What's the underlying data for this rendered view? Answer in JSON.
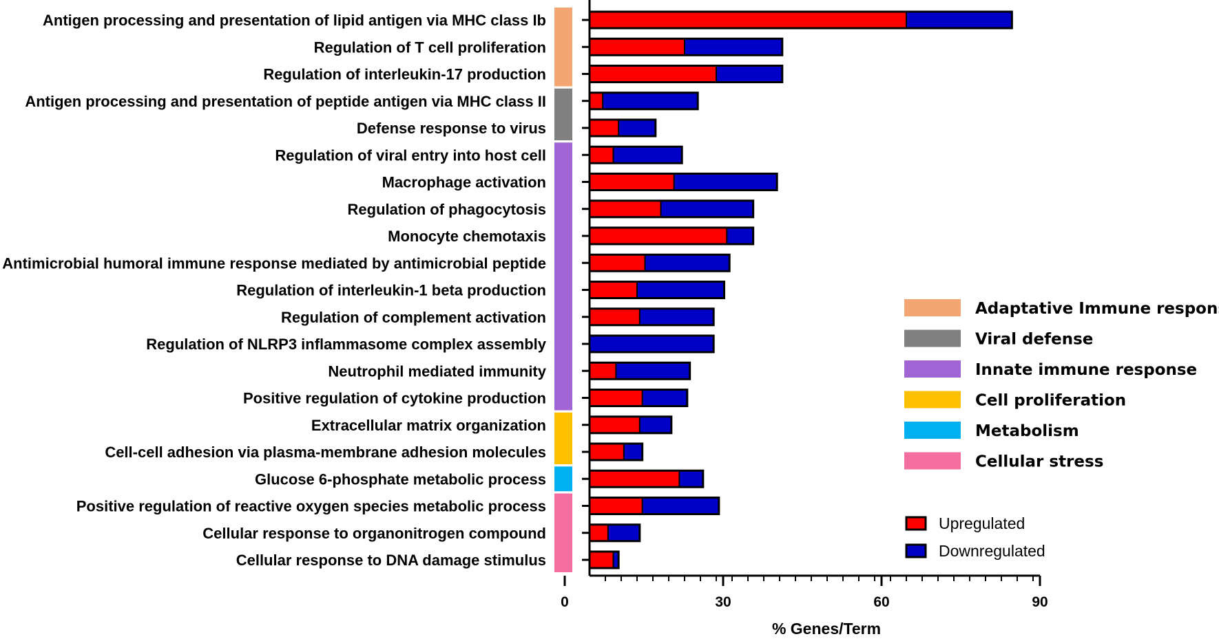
{
  "chart_data": {
    "type": "bar",
    "orientation": "horizontal",
    "stacked": true,
    "xlabel": "% Genes/Term",
    "xlim": [
      0,
      90
    ],
    "xticks": [
      0,
      30,
      60,
      90
    ],
    "categories": [
      "Antigen processing and presentation of lipid antigen via MHC class Ib",
      "Regulation of T cell proliferation",
      "Regulation of interleukin-17 production",
      "Antigen processing and presentation of peptide antigen via MHC class II",
      "Defense response to virus",
      "Regulation of viral entry into host cell",
      "Macrophage activation",
      "Regulation of phagocytosis",
      "Monocyte chemotaxis",
      "Antimicrobial humoral immune response mediated by antimicrobial peptide",
      "Regulation of interleukin-1 beta production",
      "Regulation of complement activation",
      "Regulation of NLRP3 inflammasome complex assembly",
      "Neutrophil mediated immunity",
      "Positive regulation of cytokine production",
      "Extracellular matrix organization",
      "Cell-cell adhesion via plasma-membrane adhesion molecules",
      "Glucose 6-phosphate metabolic process",
      "Positive regulation of reactive oxygen species metabolic process",
      "Cellular response to organonitrogen compound",
      "Cellular response to DNA damage stimulus"
    ],
    "series": [
      {
        "name": "Upregulated",
        "color": "#ff0000",
        "values": [
          60.0,
          18.0,
          24.0,
          2.5,
          5.5,
          4.5,
          16.0,
          13.5,
          26.0,
          10.5,
          9.0,
          9.5,
          0,
          5.0,
          10.0,
          9.5,
          6.5,
          17.0,
          10.0,
          3.5,
          4.5
        ]
      },
      {
        "name": "Downregulated",
        "color": "#0000c8",
        "values": [
          20.0,
          18.5,
          12.5,
          18.0,
          7.0,
          13.0,
          19.5,
          17.5,
          5.0,
          16.0,
          16.5,
          14.0,
          23.5,
          14.0,
          8.5,
          6.0,
          3.5,
          4.5,
          14.5,
          6.0,
          1.0
        ]
      }
    ],
    "groups": [
      {
        "name": "Adaptative Immune response",
        "color": "#f4a672",
        "start": 0,
        "end": 2
      },
      {
        "name": "Viral defense",
        "color": "#808080",
        "start": 3,
        "end": 4
      },
      {
        "name": "Innate immune response",
        "color": "#a064d4",
        "start": 5,
        "end": 14
      },
      {
        "name": "Cell proliferation",
        "color": "#ffc000",
        "start": 15,
        "end": 16
      },
      {
        "name": "Metabolism",
        "color": "#00b0f0",
        "start": 17,
        "end": 17
      },
      {
        "name": "Cellular stress",
        "color": "#f46ea0",
        "start": 18,
        "end": 20
      }
    ]
  }
}
